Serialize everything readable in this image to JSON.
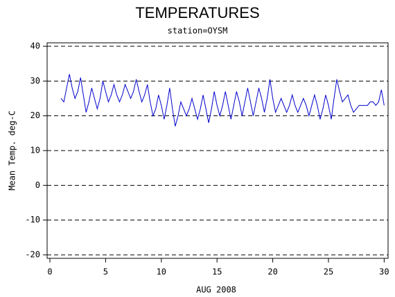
{
  "chart_data": {
    "type": "line",
    "title": "TEMPERATURES",
    "subtitle": "station=OYSM",
    "x_label": "AUG 2008",
    "y_label": "Mean Temp. deg-C",
    "x": [
      1,
      1.25,
      1.5,
      1.75,
      2,
      2.25,
      2.5,
      2.75,
      3,
      3.25,
      3.5,
      3.75,
      4,
      4.25,
      4.5,
      4.75,
      5,
      5.25,
      5.5,
      5.75,
      6,
      6.25,
      6.5,
      6.75,
      7,
      7.25,
      7.5,
      7.75,
      8,
      8.25,
      8.5,
      8.75,
      9,
      9.25,
      9.5,
      9.75,
      10,
      10.25,
      10.5,
      10.75,
      11,
      11.25,
      11.5,
      11.75,
      12,
      12.25,
      12.5,
      12.75,
      13,
      13.25,
      13.5,
      13.75,
      14,
      14.25,
      14.5,
      14.75,
      15,
      15.25,
      15.5,
      15.75,
      16,
      16.25,
      16.5,
      16.75,
      17,
      17.25,
      17.5,
      17.75,
      18,
      18.25,
      18.5,
      18.75,
      19,
      19.25,
      19.5,
      19.75,
      20,
      20.25,
      20.5,
      20.75,
      21,
      21.25,
      21.5,
      21.75,
      22,
      22.25,
      22.5,
      22.75,
      23,
      23.25,
      23.5,
      23.75,
      24,
      24.25,
      24.5,
      24.75,
      25,
      25.25,
      25.5,
      25.75,
      26,
      26.25,
      26.5,
      26.75,
      27,
      27.25,
      27.5,
      27.75,
      28,
      28.25,
      28.5,
      28.75,
      29,
      29.25,
      29.5,
      29.75,
      30
    ],
    "series": [
      {
        "name": "Mean Temp",
        "color": "#0000cc",
        "values": [
          25,
          24,
          28,
          32,
          28,
          25,
          27,
          31,
          26,
          21,
          24,
          28,
          25,
          22,
          25,
          30,
          27,
          24,
          26,
          29,
          26,
          24,
          26,
          29,
          27,
          25,
          27,
          30.5,
          27,
          24,
          26,
          29,
          24,
          20,
          22,
          26,
          23,
          19,
          23,
          28,
          22,
          17,
          20,
          24,
          22,
          20,
          22,
          25,
          22,
          19,
          22,
          26,
          22,
          18,
          22,
          27,
          23,
          20,
          23,
          27,
          23,
          19,
          23,
          27,
          24,
          20,
          24,
          28,
          24,
          20,
          24,
          28,
          25,
          21,
          25,
          30.5,
          25,
          21,
          23,
          25,
          23,
          21,
          23,
          26,
          23,
          21,
          23,
          25,
          23,
          20,
          23,
          26,
          23,
          19,
          22,
          26,
          23,
          19,
          25,
          30.5,
          27,
          24,
          25,
          26,
          23,
          21,
          22,
          23,
          23,
          23,
          23,
          24,
          24,
          23,
          24,
          27.5,
          23
        ]
      }
    ],
    "xlim": [
      -0.25,
      30.35
    ],
    "ylim": [
      -21,
      41
    ],
    "xticks": [
      0,
      5,
      10,
      15,
      20,
      25,
      30
    ],
    "yticks": [
      -20,
      -10,
      0,
      10,
      20,
      30,
      40
    ],
    "grid": true
  }
}
